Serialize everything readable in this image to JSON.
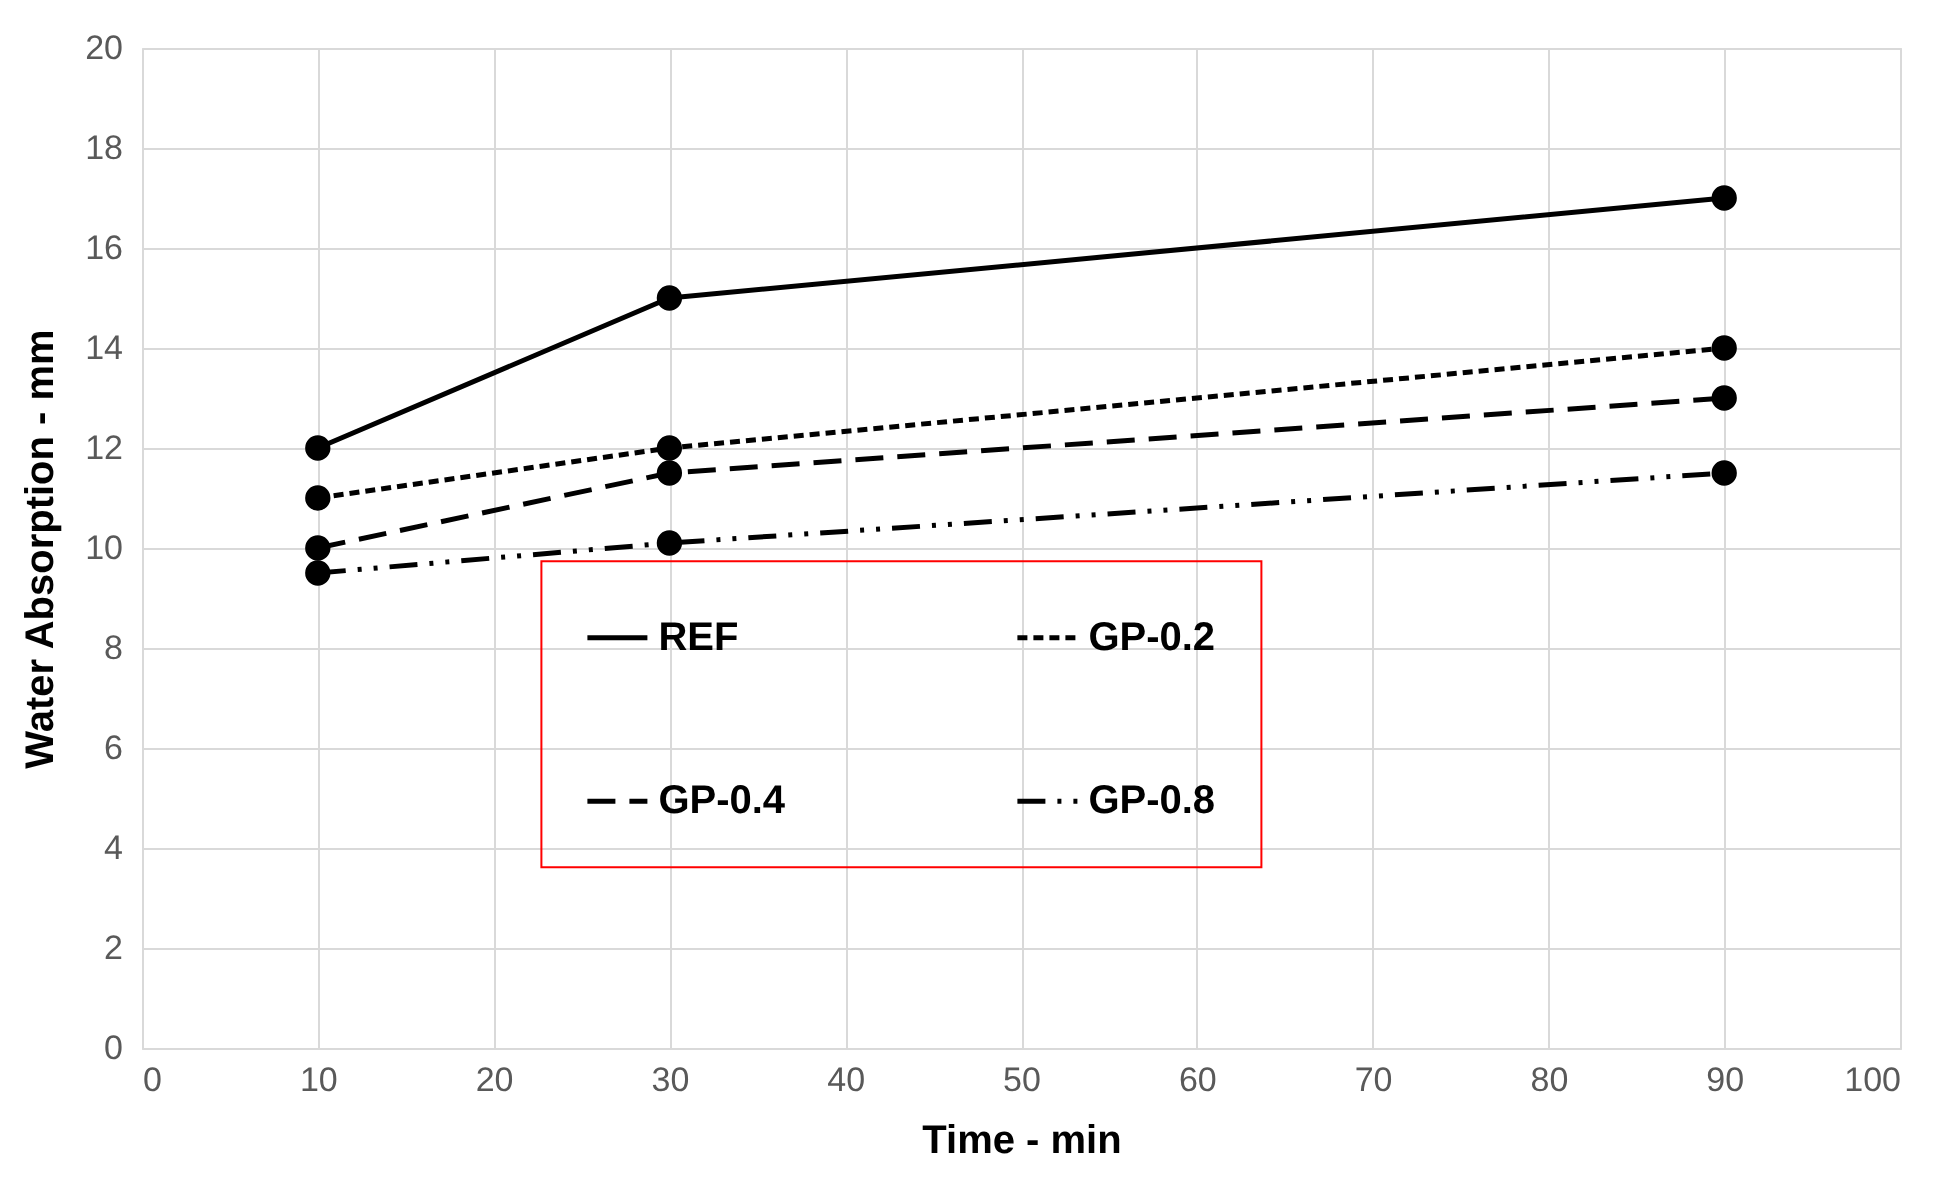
{
  "chart_data": {
    "type": "line",
    "xlabel": "Time - min",
    "ylabel": "Water Absorption - mm",
    "xlim": [
      0,
      100
    ],
    "xticks": [
      0,
      10,
      20,
      30,
      40,
      50,
      60,
      70,
      80,
      90,
      100
    ],
    "ylim": [
      0,
      20
    ],
    "yticks": [
      0,
      2,
      4,
      6,
      8,
      10,
      12,
      14,
      16,
      18,
      20
    ],
    "x": [
      10,
      30,
      90
    ],
    "grid": true,
    "legend": "bottom",
    "marker": "circle",
    "series": [
      {
        "name": "REF",
        "color": "#000000",
        "line_style": "solid",
        "values": [
          12,
          15,
          17
        ]
      },
      {
        "name": "GP-0.2",
        "color": "#000000",
        "line_style": "dotted",
        "values": [
          11,
          12,
          14
        ]
      },
      {
        "name": "GP-0.4",
        "color": "#000000",
        "line_style": "dashed",
        "values": [
          10,
          11.5,
          13
        ]
      },
      {
        "name": "GP-0.8",
        "color": "#000000",
        "line_style": "dashdot",
        "values": [
          9.5,
          10.1,
          11.5
        ]
      }
    ]
  }
}
